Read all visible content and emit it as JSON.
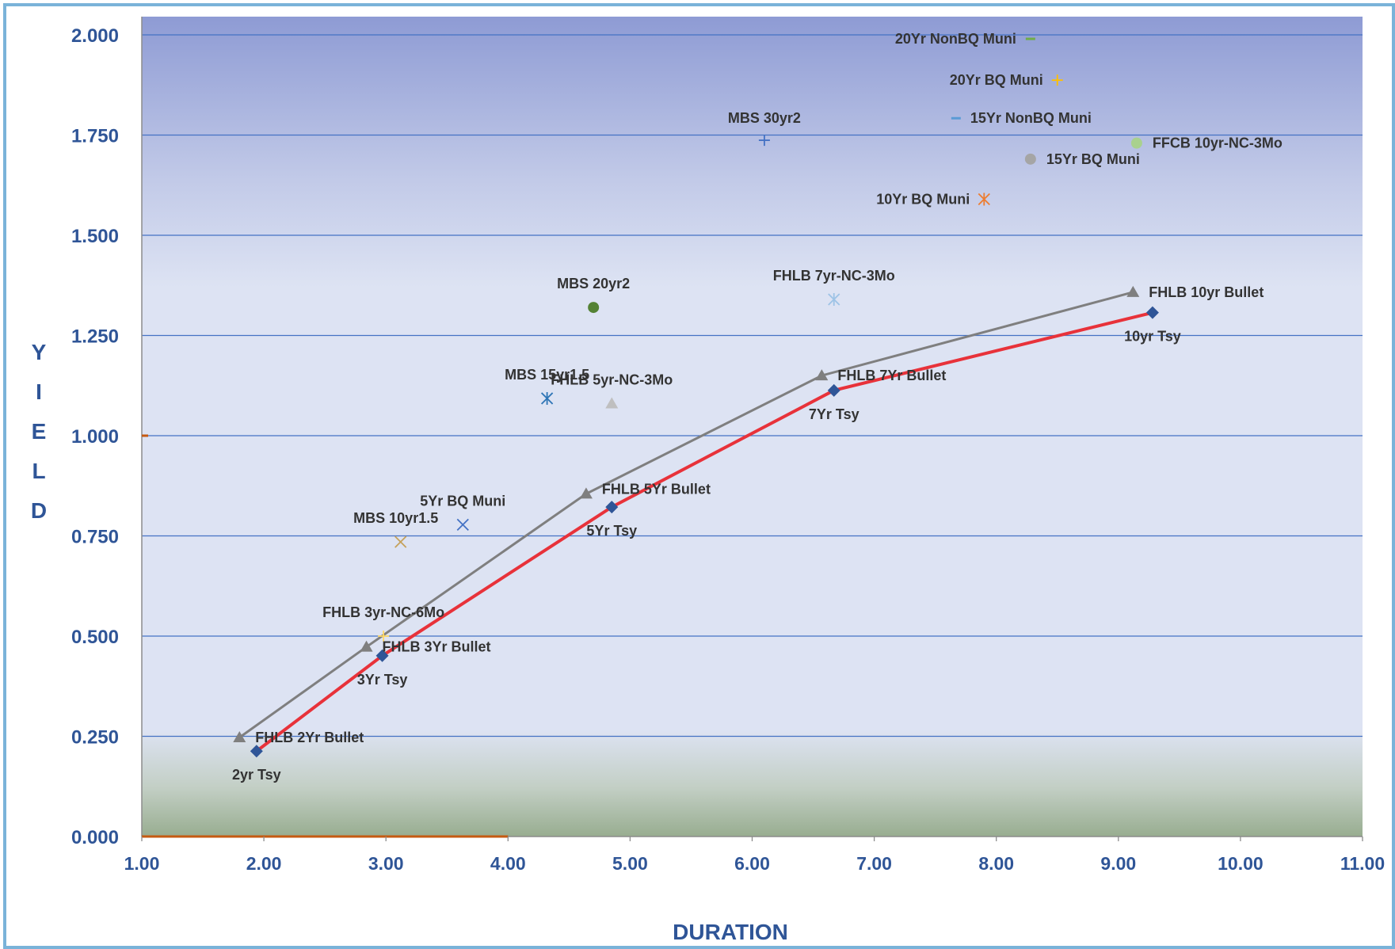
{
  "colors": {
    "treasury_line": "#e8323a",
    "treasury_marker": "#2f5597",
    "fhlb_line": "#7f7f7f",
    "fhlb_marker": "#7f7f7f",
    "axis_text": "#2f5597",
    "grid": "#4472c4",
    "bg_top": "#8e9bd4",
    "bg_mid": "#d9e0f2",
    "bg_bottom": "#98ad90"
  },
  "chart_data": {
    "type": "scatter",
    "xlabel": "DURATION",
    "ylabel": "YIELD",
    "xlim": [
      1.0,
      11.0
    ],
    "ylim": [
      0.0,
      2.0
    ],
    "xticks": [
      "1.00",
      "2.00",
      "3.00",
      "4.00",
      "5.00",
      "6.00",
      "7.00",
      "8.00",
      "9.00",
      "10.00",
      "11.00"
    ],
    "yticks": [
      "0.000",
      "0.250",
      "0.500",
      "0.750",
      "1.000",
      "1.250",
      "1.500",
      "1.750",
      "2.000"
    ],
    "grid": true,
    "lines": [
      {
        "marker": "triangle",
        "color": "#7f7f7f",
        "points": [
          {
            "x": 1.8,
            "y": 0.247,
            "label": "FHLB 2Yr Bullet"
          },
          {
            "x": 2.84,
            "y": 0.473,
            "label": "FHLB 3Yr Bullet"
          },
          {
            "x": 4.64,
            "y": 0.855,
            "label": "FHLB 5Yr Bullet"
          },
          {
            "x": 6.57,
            "y": 1.15,
            "label": "FHLB 7Yr Bullet"
          },
          {
            "x": 9.12,
            "y": 1.358,
            "label": "FHLB 10yr Bullet"
          }
        ]
      },
      {
        "marker": "diamond",
        "color": "#e8323a",
        "points": [
          {
            "x": 1.94,
            "y": 0.213,
            "label": "2yr Tsy"
          },
          {
            "x": 2.97,
            "y": 0.451,
            "label": "3Yr Tsy"
          },
          {
            "x": 4.85,
            "y": 0.822,
            "label": "5Yr Tsy"
          },
          {
            "x": 6.67,
            "y": 1.113,
            "label": "7Yr Tsy"
          },
          {
            "x": 9.28,
            "y": 1.307,
            "label": "10yr Tsy"
          }
        ]
      }
    ],
    "points": [
      {
        "label": "20Yr NonBQ Muni",
        "x": 8.28,
        "y": 1.99,
        "marker": "dash",
        "color": "#70ad47"
      },
      {
        "label": "20Yr BQ Muni",
        "x": 8.5,
        "y": 1.887,
        "marker": "plus",
        "color": "#ffc000"
      },
      {
        "label": "15Yr NonBQ Muni",
        "x": 7.67,
        "y": 1.792,
        "marker": "dash",
        "color": "#5b9bd5"
      },
      {
        "label": "MBS 30yr2",
        "x": 6.1,
        "y": 1.737,
        "marker": "plus",
        "color": "#4472c4"
      },
      {
        "label": "FFCB 10yr-NC-3Mo",
        "x": 9.15,
        "y": 1.73,
        "marker": "circle",
        "color": "#a9d18e"
      },
      {
        "label": "15Yr BQ Muni",
        "x": 8.28,
        "y": 1.69,
        "marker": "circle",
        "color": "#a5a5a5"
      },
      {
        "label": "10Yr BQ Muni",
        "x": 7.9,
        "y": 1.59,
        "marker": "asterisk",
        "color": "#ed7d31"
      },
      {
        "label": "FHLB 7yr-NC-3Mo",
        "x": 6.67,
        "y": 1.34,
        "marker": "asterisk",
        "color": "#9dc3e6"
      },
      {
        "label": "MBS 20yr2",
        "x": 4.7,
        "y": 1.32,
        "marker": "circle",
        "color": "#548235"
      },
      {
        "label": "MBS 15yr1.5",
        "x": 4.32,
        "y": 1.093,
        "marker": "asterisk",
        "color": "#2e75b6"
      },
      {
        "label": "FHLB 5yr-NC-3Mo",
        "x": 4.85,
        "y": 1.08,
        "marker": "triangle",
        "color": "#bfbfbf"
      },
      {
        "label": "5Yr BQ Muni",
        "x": 3.63,
        "y": 0.778,
        "marker": "x",
        "color": "#4472c4"
      },
      {
        "label": "MBS 10yr1.5",
        "x": 3.12,
        "y": 0.735,
        "marker": "x",
        "color": "#c5a15a"
      },
      {
        "label": "FHLB 3yr-NC-6Mo",
        "x": 2.98,
        "y": 0.5,
        "marker": "plus",
        "color": "#ffd966"
      }
    ]
  }
}
